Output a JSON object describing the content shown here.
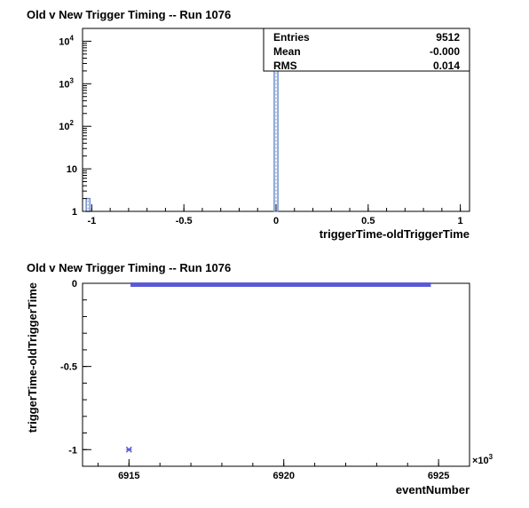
{
  "chart_data": [
    {
      "type": "histogram",
      "title": "Old v New Trigger Timing -- Run 1076",
      "xlabel": "triggerTime-oldTriggerTime",
      "ylabel": "",
      "xlim": [
        -1.05,
        1.05
      ],
      "ylim": [
        1,
        20000
      ],
      "yscale": "log",
      "xticks": [
        -1,
        -0.5,
        0,
        0.5,
        1
      ],
      "xtick_labels": [
        "-1",
        "-0.5",
        "0",
        "0.5",
        "1"
      ],
      "yticks": [
        1,
        10,
        100,
        1000,
        10000
      ],
      "ytick_labels": [
        {
          "base": "1",
          "exp": ""
        },
        {
          "base": "10",
          "exp": ""
        },
        {
          "base": "10",
          "exp": "2"
        },
        {
          "base": "10",
          "exp": "3"
        },
        {
          "base": "10",
          "exp": "4"
        }
      ],
      "bins": [
        {
          "x0": -1.03,
          "x1": -1.01,
          "count": 2
        },
        {
          "x0": -0.01,
          "x1": 0.01,
          "count": 9510
        }
      ],
      "stats": {
        "rows": [
          {
            "label": "Entries",
            "value": "9512"
          },
          {
            "label": "Mean",
            "value": "-0.000"
          },
          {
            "label": "RMS",
            "value": "0.014"
          }
        ]
      },
      "colors": {
        "line": "#6f8fd0",
        "frame": "#000000"
      }
    },
    {
      "type": "scatter",
      "title": "Old v New Trigger Timing -- Run 1076",
      "xlabel": "eventNumber",
      "ylabel": "triggerTime-oldTriggerTime",
      "xlim": [
        6913.5,
        6926
      ],
      "ylim": [
        -1.1,
        0
      ],
      "x_multiplier": {
        "base": "×10",
        "exp": "3"
      },
      "xticks": [
        6915,
        6920,
        6925
      ],
      "xtick_labels": [
        "6915",
        "6920",
        "6925"
      ],
      "yticks": [
        0,
        -0.5,
        -1
      ],
      "ytick_labels": [
        "0",
        "-0.5",
        "-1"
      ],
      "band": {
        "x_start": 6915.05,
        "x_end": 6924.75,
        "y": 0
      },
      "points": [
        {
          "x": 6915.0,
          "y": -1.0
        }
      ],
      "colors": {
        "marker": "#5a5ad8",
        "frame": "#000000"
      }
    }
  ]
}
